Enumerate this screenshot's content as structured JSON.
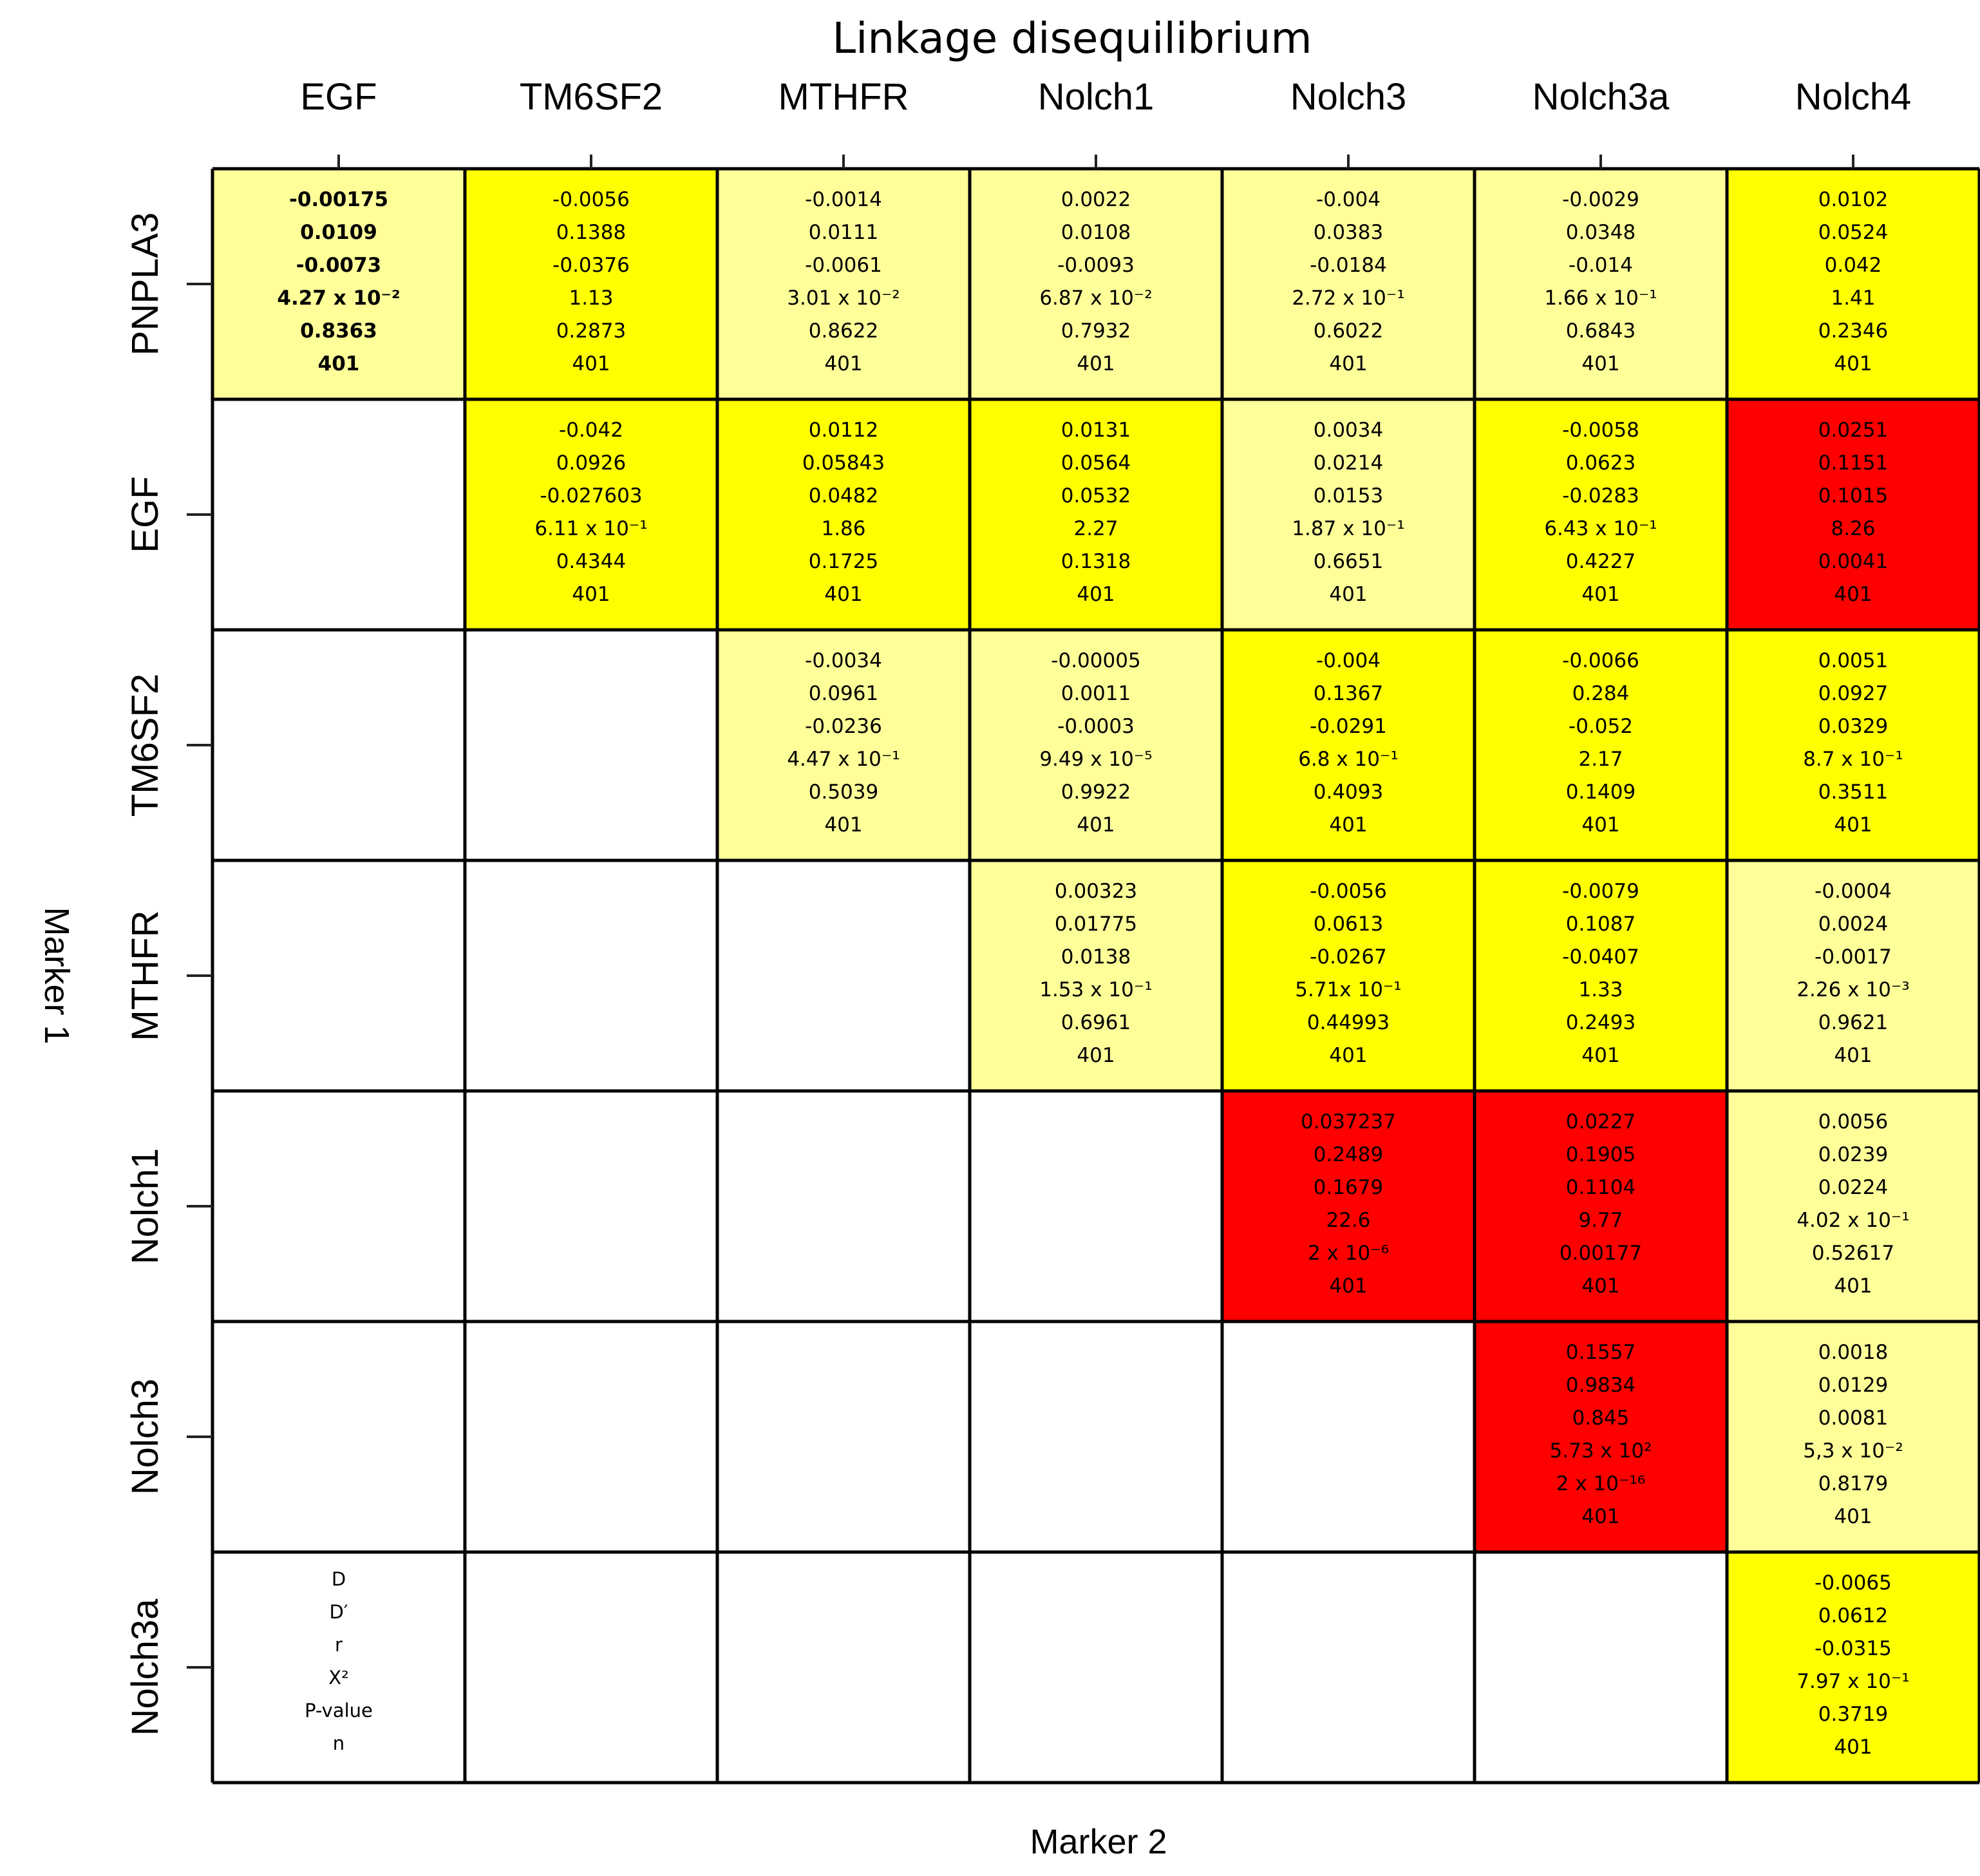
{
  "chart_data": {
    "type": "heatmap",
    "title": "Linkage disequilibrium",
    "xlabel": "Marker 2",
    "ylabel": "Marker 1",
    "columns": [
      "EGF",
      "TM6SF2",
      "MTHFR",
      "Nolch1",
      "Nolch3",
      "Nolch3a",
      "Nolch4"
    ],
    "rows": [
      "PNPLA3",
      "EGF",
      "TM6SF2",
      "MTHFR",
      "Nolch1",
      "Nolch3",
      "Nolch3a"
    ],
    "stat_labels": [
      "D",
      "D′",
      "r",
      "X²",
      "P-value",
      "n"
    ],
    "colors": {
      "pale_yellow": "#ffff99",
      "yellow": "#ffff00",
      "red": "#ff0000",
      "empty": "#ffffff",
      "border": "#000000"
    },
    "cells": [
      {
        "row": 0,
        "col": 0,
        "color": "pale_yellow",
        "bold": true,
        "values": [
          "-0.00175",
          "0.0109",
          "-0.0073",
          "4.27 x 10⁻²",
          "0.8363",
          "401"
        ]
      },
      {
        "row": 0,
        "col": 1,
        "color": "yellow",
        "values": [
          "-0.0056",
          "0.1388",
          "-0.0376",
          "1.13",
          "0.2873",
          "401"
        ]
      },
      {
        "row": 0,
        "col": 2,
        "color": "pale_yellow",
        "values": [
          "-0.0014",
          "0.0111",
          "-0.0061",
          "3.01 x 10⁻²",
          "0.8622",
          "401"
        ]
      },
      {
        "row": 0,
        "col": 3,
        "color": "pale_yellow",
        "values": [
          "0.0022",
          "0.0108",
          "-0.0093",
          "6.87 x 10⁻²",
          "0.7932",
          "401"
        ]
      },
      {
        "row": 0,
        "col": 4,
        "color": "pale_yellow",
        "values": [
          "-0.004",
          "0.0383",
          "-0.0184",
          "2.72 x 10⁻¹",
          "0.6022",
          "401"
        ]
      },
      {
        "row": 0,
        "col": 5,
        "color": "pale_yellow",
        "values": [
          "-0.0029",
          "0.0348",
          "-0.014",
          "1.66 x 10⁻¹",
          "0.6843",
          "401"
        ]
      },
      {
        "row": 0,
        "col": 6,
        "color": "yellow",
        "values": [
          "0.0102",
          "0.0524",
          "0.042",
          "1.41",
          "0.2346",
          "401"
        ]
      },
      {
        "row": 1,
        "col": 1,
        "color": "yellow",
        "values": [
          "-0.042",
          "0.0926",
          "-0.027603",
          "6.11 x 10⁻¹",
          "0.4344",
          "401"
        ]
      },
      {
        "row": 1,
        "col": 2,
        "color": "yellow",
        "values": [
          "0.0112",
          "0.05843",
          "0.0482",
          "1.86",
          "0.1725",
          "401"
        ]
      },
      {
        "row": 1,
        "col": 3,
        "color": "yellow",
        "values": [
          "0.0131",
          "0.0564",
          "0.0532",
          "2.27",
          "0.1318",
          "401"
        ]
      },
      {
        "row": 1,
        "col": 4,
        "color": "pale_yellow",
        "values": [
          "0.0034",
          "0.0214",
          "0.0153",
          "1.87 x 10⁻¹",
          "0.6651",
          "401"
        ]
      },
      {
        "row": 1,
        "col": 5,
        "color": "yellow",
        "values": [
          "-0.0058",
          "0.0623",
          "-0.0283",
          "6.43 x 10⁻¹",
          "0.4227",
          "401"
        ]
      },
      {
        "row": 1,
        "col": 6,
        "color": "red",
        "values": [
          "0.0251",
          "0.1151",
          "0.1015",
          "8.26",
          "0.0041",
          "401"
        ]
      },
      {
        "row": 2,
        "col": 2,
        "color": "pale_yellow",
        "values": [
          "-0.0034",
          "0.0961",
          "-0.0236",
          "4.47 x 10⁻¹",
          "0.5039",
          "401"
        ]
      },
      {
        "row": 2,
        "col": 3,
        "color": "pale_yellow",
        "values": [
          "-0.00005",
          "0.0011",
          "-0.0003",
          "9.49 x 10⁻⁵",
          "0.9922",
          "401"
        ]
      },
      {
        "row": 2,
        "col": 4,
        "color": "yellow",
        "values": [
          "-0.004",
          "0.1367",
          "-0.0291",
          "6.8 x 10⁻¹",
          "0.4093",
          "401"
        ]
      },
      {
        "row": 2,
        "col": 5,
        "color": "yellow",
        "values": [
          "-0.0066",
          "0.284",
          "-0.052",
          "2.17",
          "0.1409",
          "401"
        ]
      },
      {
        "row": 2,
        "col": 6,
        "color": "yellow",
        "values": [
          "0.0051",
          "0.0927",
          "0.0329",
          "8.7 x 10⁻¹",
          "0.3511",
          "401"
        ]
      },
      {
        "row": 3,
        "col": 3,
        "color": "pale_yellow",
        "values": [
          "0.00323",
          "0.01775",
          "0.0138",
          "1.53 x 10⁻¹",
          "0.6961",
          "401"
        ]
      },
      {
        "row": 3,
        "col": 4,
        "color": "yellow",
        "values": [
          "-0.0056",
          "0.0613",
          "-0.0267",
          "5.71x 10⁻¹",
          "0.44993",
          "401"
        ]
      },
      {
        "row": 3,
        "col": 5,
        "color": "yellow",
        "values": [
          "-0.0079",
          "0.1087",
          "-0.0407",
          "1.33",
          "0.2493",
          "401"
        ]
      },
      {
        "row": 3,
        "col": 6,
        "color": "pale_yellow",
        "values": [
          "-0.0004",
          "0.0024",
          "-0.0017",
          "2.26 x 10⁻³",
          "0.9621",
          "401"
        ]
      },
      {
        "row": 4,
        "col": 4,
        "color": "red",
        "values": [
          "0.037237",
          "0.2489",
          "0.1679",
          "22.6",
          "2 x 10⁻⁶",
          "401"
        ]
      },
      {
        "row": 4,
        "col": 5,
        "color": "red",
        "values": [
          "0.0227",
          "0.1905",
          "0.1104",
          "9.77",
          "0.00177",
          "401"
        ]
      },
      {
        "row": 4,
        "col": 6,
        "color": "pale_yellow",
        "values": [
          "0.0056",
          "0.0239",
          "0.0224",
          "4.02 x 10⁻¹",
          "0.52617",
          "401"
        ]
      },
      {
        "row": 5,
        "col": 5,
        "color": "red",
        "values": [
          "0.1557",
          "0.9834",
          "0.845",
          "5.73 x 10²",
          "2 x 10⁻¹⁶",
          "401"
        ]
      },
      {
        "row": 5,
        "col": 6,
        "color": "pale_yellow",
        "values": [
          "0.0018",
          "0.0129",
          "0.0081",
          "5,3 x 10⁻²",
          "0.8179",
          "401"
        ]
      },
      {
        "row": 6,
        "col": 6,
        "color": "yellow",
        "values": [
          "-0.0065",
          "0.0612",
          "-0.0315",
          "7.97 x 10⁻¹",
          "0.3719",
          "401"
        ]
      }
    ],
    "legend_cell": {
      "row": 6,
      "col": 0
    },
    "grid": true,
    "legend_placement": "bottom-left cell"
  }
}
